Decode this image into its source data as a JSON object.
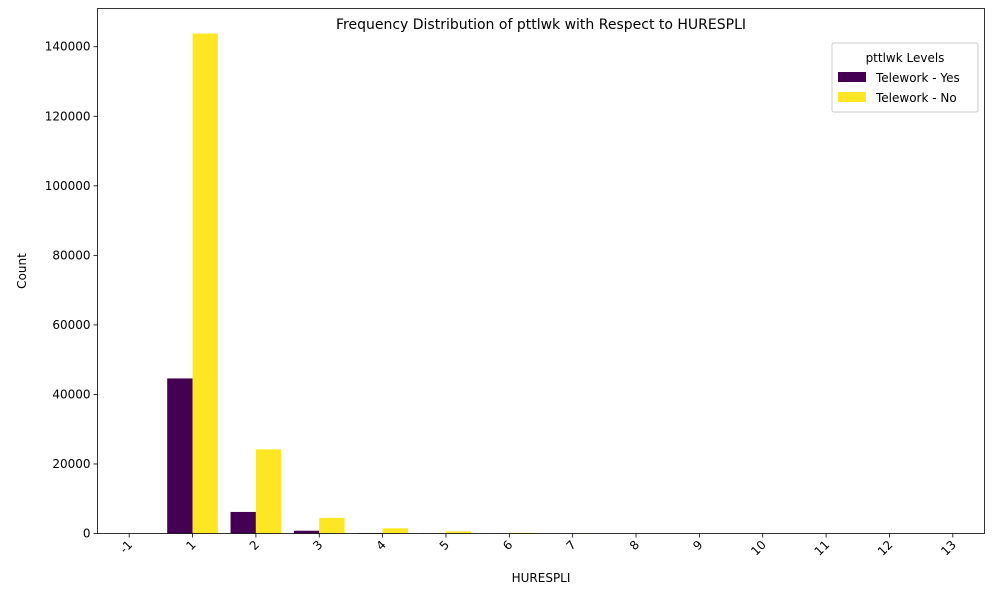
{
  "chart_data": {
    "type": "bar",
    "title": "Frequency Distribution of pttlwk with Respect to HURESPLI",
    "xlabel": "HURESPLI",
    "ylabel": "Count",
    "categories": [
      "-1",
      "1",
      "2",
      "3",
      "4",
      "5",
      "6",
      "7",
      "8",
      "9",
      "10",
      "11",
      "12",
      "13"
    ],
    "series": [
      {
        "name": "Telework - Yes",
        "color": "#440154",
        "values": [
          0,
          44600,
          6200,
          800,
          150,
          40,
          10,
          3,
          1,
          0,
          0,
          0,
          0,
          0
        ]
      },
      {
        "name": "Telework - No",
        "color": "#fde725",
        "values": [
          0,
          143800,
          24200,
          4500,
          1500,
          600,
          200,
          80,
          30,
          10,
          5,
          2,
          1,
          1
        ]
      }
    ],
    "ylim": [
      0,
      151000
    ],
    "yticks": [
      0,
      20000,
      40000,
      60000,
      80000,
      100000,
      120000,
      140000
    ],
    "legend": {
      "title": "pttlwk Levels",
      "placement": "top-right"
    },
    "grid": false,
    "xtick_rotation": 45
  }
}
